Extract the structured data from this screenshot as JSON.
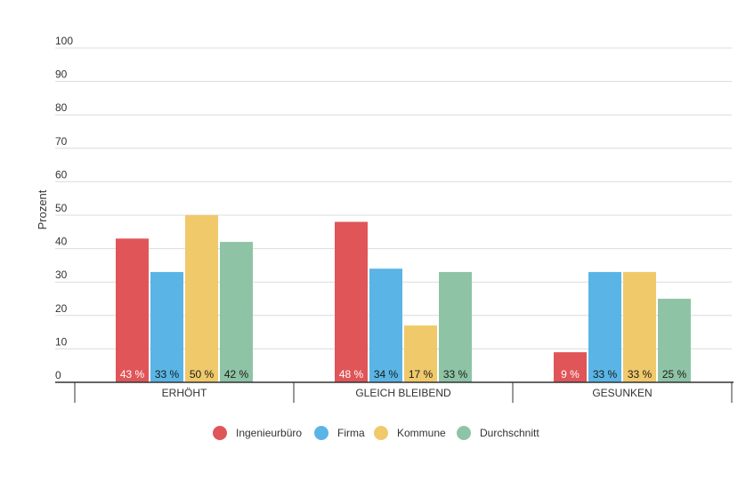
{
  "chart_data": {
    "type": "bar",
    "title": "",
    "xlabel": "",
    "ylabel": "Prozent",
    "ylim": [
      0,
      100
    ],
    "yticks": [
      0,
      10,
      20,
      30,
      40,
      50,
      60,
      70,
      80,
      90,
      100
    ],
    "grid": true,
    "legend_position": "bottom",
    "categories": [
      "ERHÖHT",
      "GLEICH BLEIBEND",
      "GESUNKEN"
    ],
    "series": [
      {
        "name": "Ingenieurbüro",
        "color": "#e05558",
        "values": [
          43,
          48,
          9
        ],
        "labels": [
          "43 %",
          "48 %",
          "9 %"
        ],
        "label_color": "#ffffff"
      },
      {
        "name": "Firma",
        "color": "#5ab5e6",
        "values": [
          33,
          34,
          33
        ],
        "labels": [
          "33 %",
          "34 %",
          "33 %"
        ],
        "label_color": "#1a1a1a"
      },
      {
        "name": "Kommune",
        "color": "#f0c96b",
        "values": [
          50,
          17,
          33
        ],
        "labels": [
          "50 %",
          "17 %",
          "33 %"
        ],
        "label_color": "#1a1a1a"
      },
      {
        "name": "Durchschnitt",
        "color": "#8ec4a5",
        "values": [
          42,
          33,
          25
        ],
        "labels": [
          "42 %",
          "33 %",
          "25 %"
        ],
        "label_color": "#1a1a1a"
      }
    ]
  }
}
